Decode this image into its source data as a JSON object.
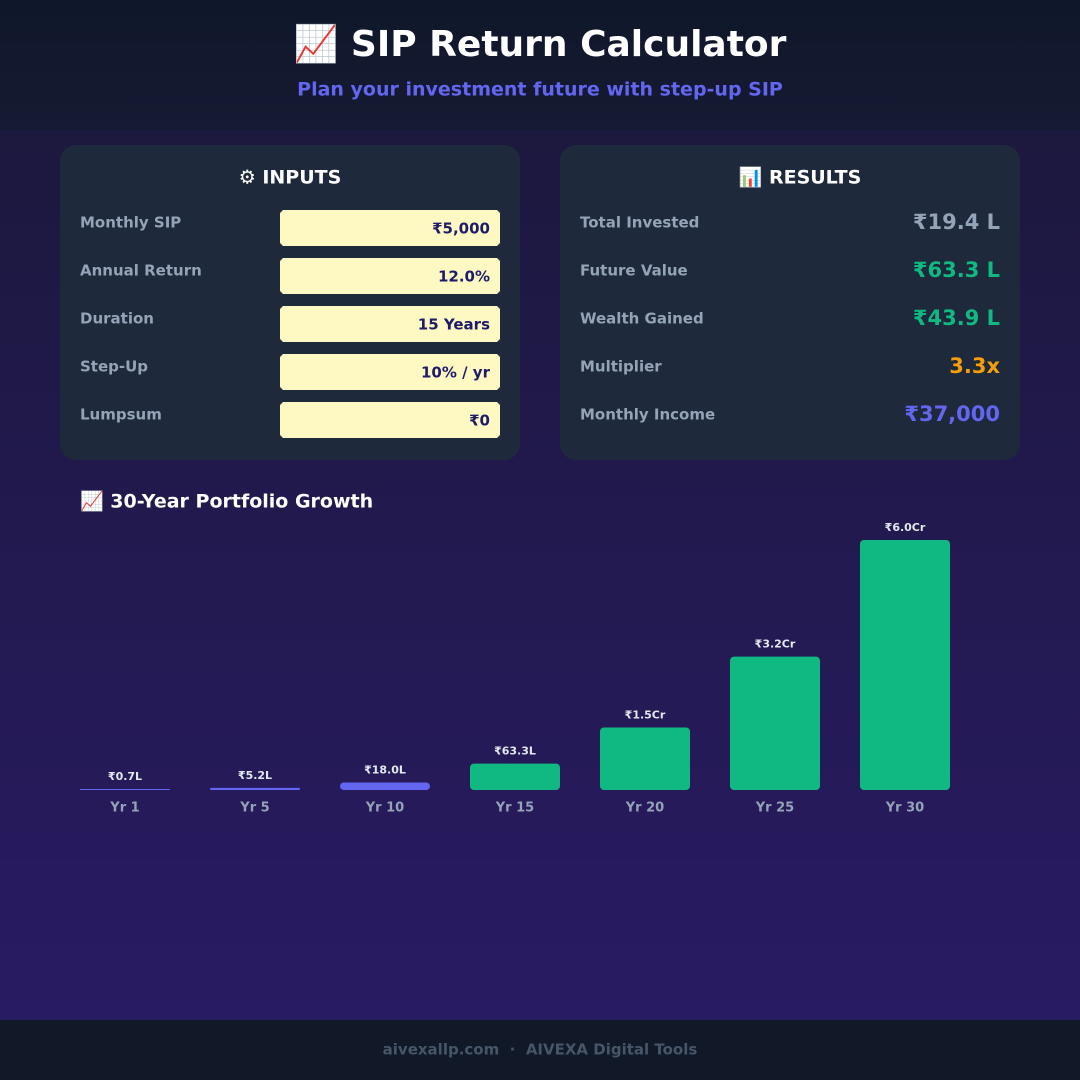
{
  "header": {
    "title": "📈 SIP Return Calculator",
    "subtitle": "Plan your investment future with step-up SIP"
  },
  "inputs": {
    "title": "⚙ INPUTS",
    "rows": [
      {
        "label": "Monthly SIP",
        "value": "₹5,000"
      },
      {
        "label": "Annual Return",
        "value": "12.0%"
      },
      {
        "label": "Duration",
        "value": "15 Years"
      },
      {
        "label": "Step-Up",
        "value": "10% / yr"
      },
      {
        "label": "Lumpsum",
        "value": "₹0"
      }
    ]
  },
  "results": {
    "title": "📊 RESULTS",
    "rows": [
      {
        "label": "Total Invested",
        "value": "₹19.4 L",
        "color": "#94a3b8"
      },
      {
        "label": "Future Value",
        "value": "₹63.3 L",
        "color": "#10b981"
      },
      {
        "label": "Wealth Gained",
        "value": "₹43.9 L",
        "color": "#10b981"
      },
      {
        "label": "Multiplier",
        "value": "3.3x",
        "color": "#f59e0b"
      },
      {
        "label": "Monthly Income",
        "value": "₹37,000",
        "color": "#6366f1"
      }
    ]
  },
  "chart_data": {
    "type": "bar",
    "title": "📈 30-Year Portfolio Growth",
    "categories": [
      "Yr 1",
      "Yr 5",
      "Yr 10",
      "Yr 15",
      "Yr 20",
      "Yr 25",
      "Yr 30"
    ],
    "values": [
      0.7,
      5.2,
      18.0,
      63.3,
      150,
      320,
      600
    ],
    "value_labels": [
      "₹0.7L",
      "₹5.2L",
      "₹18.0L",
      "₹63.3L",
      "₹1.5Cr",
      "₹3.2Cr",
      "₹6.0Cr"
    ],
    "colors": [
      "#6366f1",
      "#6366f1",
      "#6366f1",
      "#10b981",
      "#10b981",
      "#10b981",
      "#10b981"
    ]
  },
  "footer": {
    "text": "aivexallp.com  ·  AIVEXA Digital Tools"
  }
}
